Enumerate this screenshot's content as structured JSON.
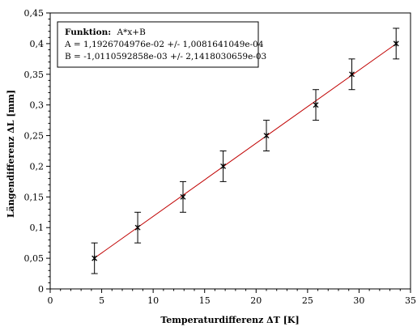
{
  "chart_data": {
    "type": "scatter",
    "xlabel": "Temperaturdifferenz ΔT [K]",
    "ylabel": "Längendifferenz ΔL [mm]",
    "xlim": [
      0,
      35
    ],
    "ylim": [
      0,
      0.45
    ],
    "x_ticks": [
      0,
      5,
      10,
      15,
      20,
      25,
      30,
      35
    ],
    "x_tick_labels": [
      "0",
      "5",
      "10",
      "15",
      "20",
      "25",
      "30",
      "35"
    ],
    "y_ticks": [
      0,
      0.05,
      0.1,
      0.15,
      0.2,
      0.25,
      0.3,
      0.35,
      0.4,
      0.45
    ],
    "y_tick_labels": [
      "0",
      "0,05",
      "0,1",
      "0,15",
      "0,2",
      "0,25",
      "0,3",
      "0,35",
      "0,4",
      "0,45"
    ],
    "grid": false,
    "series": [
      {
        "type": "scatter",
        "marker": "asterisk",
        "color": "#000000",
        "x": [
          4.3,
          8.5,
          12.9,
          16.8,
          21.0,
          25.8,
          29.3,
          33.6
        ],
        "y": [
          0.05,
          0.1,
          0.15,
          0.2,
          0.25,
          0.3,
          0.35,
          0.4
        ],
        "y_error": [
          0.025,
          0.025,
          0.025,
          0.025,
          0.025,
          0.025,
          0.025,
          0.025
        ]
      },
      {
        "type": "line",
        "color": "#c00000",
        "slope": 0.011926704976,
        "intercept": -0.0010110592858
      }
    ],
    "legend": {
      "placement": "top-left",
      "title_label": "Funktion:",
      "title_formula": "A*x+B",
      "lines": [
        "A = 1,1926704976e-02 +/-  1,0081641049e-04",
        "B = -1,0110592858e-03 +/-  2,1418030659e-03"
      ]
    }
  }
}
